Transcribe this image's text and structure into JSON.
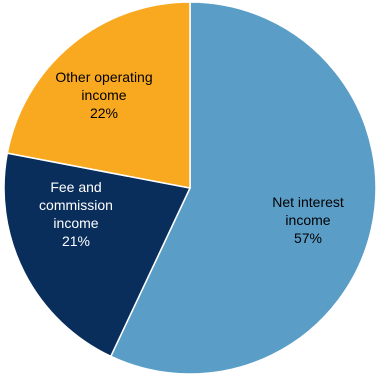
{
  "chart_data": {
    "type": "pie",
    "title": "",
    "slices": [
      {
        "label_lines": [
          "Net interest",
          "income"
        ],
        "value": 57,
        "value_label": "57%",
        "color": "#5A9EC8",
        "text_color": "#000000"
      },
      {
        "label_lines": [
          "Fee and",
          "commission",
          "income"
        ],
        "value": 21,
        "value_label": "21%",
        "color": "#0A2E5C",
        "text_color": "#ffffff"
      },
      {
        "label_lines": [
          "Other operating",
          "income"
        ],
        "value": 22,
        "value_label": "22%",
        "color": "#F9A920",
        "text_color": "#000000"
      }
    ],
    "start": "12 o'clock",
    "direction": "clockwise",
    "legend": "none"
  }
}
